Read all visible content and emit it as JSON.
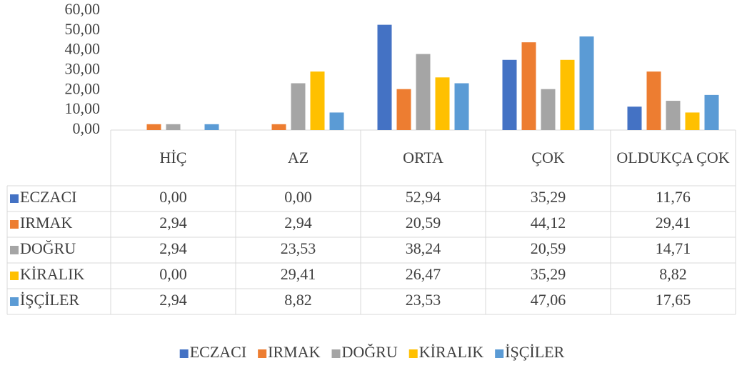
{
  "chart_data": {
    "type": "bar",
    "categories": [
      "HİÇ",
      "AZ",
      "ORTA",
      "ÇOK",
      "OLDUKÇA ÇOK"
    ],
    "series": [
      {
        "name": "ECZACI",
        "color": "#4472c4",
        "values": [
          0,
          0,
          52.94,
          35.29,
          11.76
        ],
        "value_labels": [
          "0,00",
          "0,00",
          "52,94",
          "35,29",
          "11,76"
        ]
      },
      {
        "name": "IRMAK",
        "color": "#ed7d31",
        "values": [
          2.94,
          2.94,
          20.59,
          44.12,
          29.41
        ],
        "value_labels": [
          "2,94",
          "2,94",
          "20,59",
          "44,12",
          "29,41"
        ]
      },
      {
        "name": "DOĞRU",
        "color": "#a5a5a5",
        "values": [
          2.94,
          23.53,
          38.24,
          20.59,
          14.71
        ],
        "value_labels": [
          "2,94",
          "23,53",
          "38,24",
          "20,59",
          "14,71"
        ]
      },
      {
        "name": "KİRALIK",
        "color": "#ffc000",
        "values": [
          0,
          29.41,
          26.47,
          35.29,
          8.82
        ],
        "value_labels": [
          "0,00",
          "29,41",
          "26,47",
          "35,29",
          "8,82"
        ]
      },
      {
        "name": "İŞÇİLER",
        "color": "#5b9bd5",
        "values": [
          2.94,
          8.82,
          23.53,
          47.06,
          17.65
        ],
        "value_labels": [
          "2,94",
          "8,82",
          "23,53",
          "47,06",
          "17,65"
        ]
      }
    ],
    "ylim": [
      0,
      60
    ],
    "yticks": [
      {
        "value": 0,
        "label": "0,00"
      },
      {
        "value": 10,
        "label": "10,00"
      },
      {
        "value": 20,
        "label": "20,00"
      },
      {
        "value": 30,
        "label": "30,00"
      },
      {
        "value": 40,
        "label": "40,00"
      },
      {
        "value": 50,
        "label": "50,00"
      },
      {
        "value": 60,
        "label": "60,00"
      }
    ],
    "legend": "bottom"
  }
}
